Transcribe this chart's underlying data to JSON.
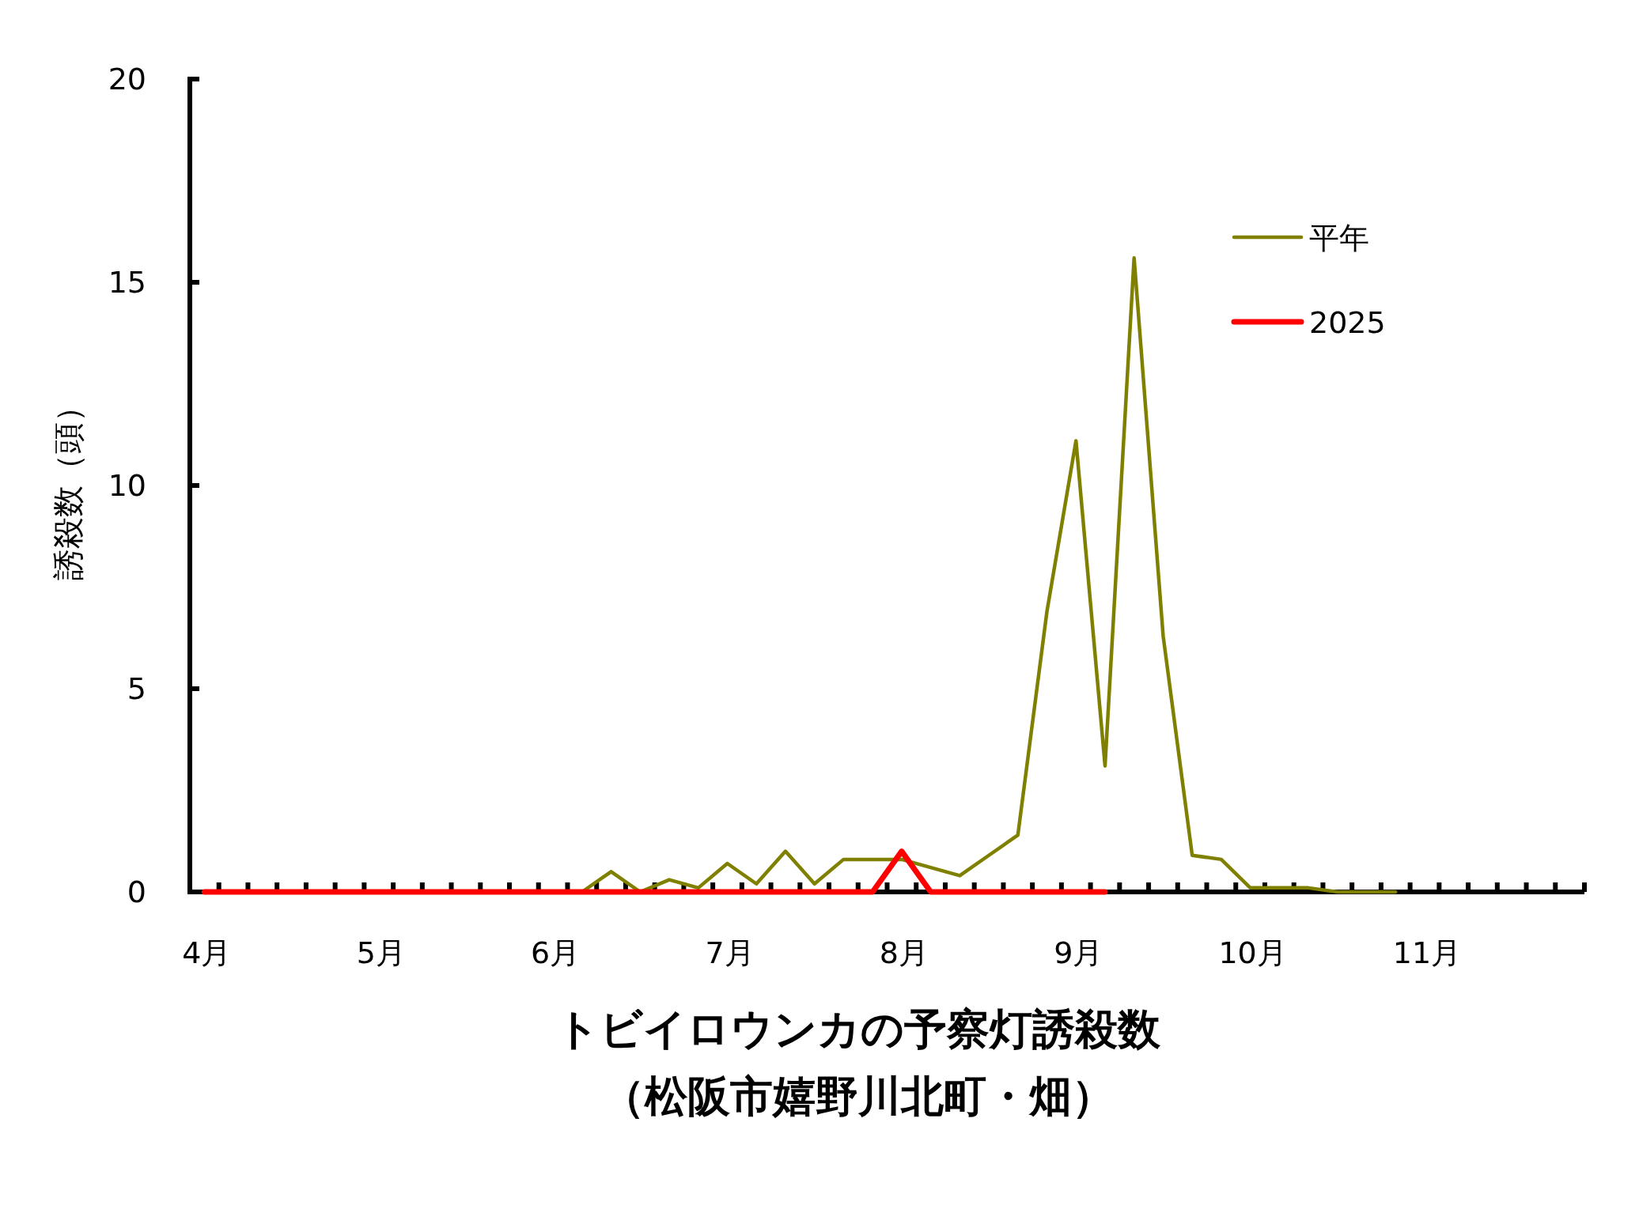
{
  "chart_data": {
    "type": "line",
    "title": "トビイロウンカの予察灯誘殺数",
    "subtitle": "（松阪市嬉野川北町・畑）",
    "ylabel": "誘殺数（頭）",
    "categories": [
      "4月",
      null,
      null,
      null,
      null,
      null,
      "5月",
      null,
      null,
      null,
      null,
      null,
      "6月",
      null,
      null,
      null,
      null,
      null,
      "7月",
      null,
      null,
      null,
      null,
      null,
      "8月",
      null,
      null,
      null,
      null,
      null,
      "9月",
      null,
      null,
      null,
      null,
      null,
      "10月",
      null,
      null,
      null,
      null,
      null,
      "11月",
      null,
      null,
      null,
      null,
      null
    ],
    "series": [
      {
        "name": "平年",
        "color": "#808000",
        "values": [
          null,
          null,
          null,
          null,
          null,
          null,
          null,
          null,
          null,
          null,
          null,
          null,
          null,
          0,
          0.5,
          0,
          0.3,
          0.1,
          0.7,
          0.2,
          1.0,
          0.2,
          0.8,
          0.8,
          0.8,
          0.6,
          0.4,
          0.9,
          1.4,
          6.9,
          11.1,
          3.1,
          15.6,
          6.3,
          0.9,
          0.8,
          0.1,
          0.1,
          0.1,
          0,
          0,
          0,
          null,
          null,
          null,
          null,
          null,
          null
        ]
      },
      {
        "name": "2025",
        "color": "#ff0000",
        "values": [
          0,
          0,
          0,
          0,
          0,
          0,
          0,
          0,
          0,
          0,
          0,
          0,
          0,
          0,
          0,
          0,
          0,
          0,
          0,
          0,
          0,
          0,
          0,
          0,
          1.0,
          0,
          0,
          0,
          0,
          0,
          0,
          0,
          null,
          null,
          null,
          null,
          null,
          null,
          null,
          null,
          null,
          null,
          null,
          null,
          null,
          null,
          null,
          null
        ]
      }
    ],
    "ylim": [
      0,
      20
    ],
    "yticks": [
      0,
      5,
      10,
      15,
      20
    ],
    "legend": "top right"
  }
}
